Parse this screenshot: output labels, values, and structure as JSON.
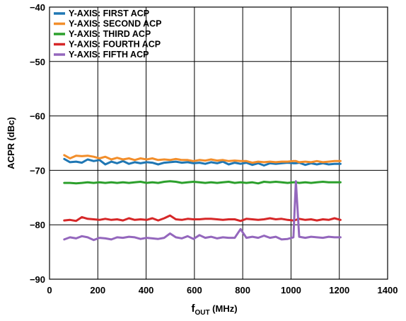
{
  "chart_data": {
    "type": "line",
    "xlabel": {
      "main": "f",
      "sub": "OUT",
      "rest": " (MHz)"
    },
    "ylabel": "ACPR (dBc)",
    "xlim": [
      0,
      1400
    ],
    "ylim": [
      -90,
      -40
    ],
    "xticks": [
      0,
      200,
      400,
      600,
      800,
      1000,
      1200,
      1400
    ],
    "yticks": [
      -40,
      -50,
      -60,
      -70,
      -80,
      -90
    ],
    "grid": true,
    "legend_position": "top-left",
    "x": [
      61,
      85,
      110,
      134,
      158,
      183,
      207,
      231,
      256,
      280,
      304,
      329,
      353,
      377,
      402,
      426,
      450,
      475,
      499,
      523,
      548,
      572,
      596,
      621,
      645,
      669,
      694,
      718,
      742,
      767,
      791,
      815,
      840,
      864,
      888,
      913,
      937,
      961,
      986,
      1010,
      1020,
      1034,
      1059,
      1083,
      1107,
      1132,
      1156,
      1180,
      1205
    ],
    "series": [
      {
        "name": "Y-AXIS: FIRST ACP",
        "color": "#1f77b4",
        "values": [
          -67.9,
          -68.5,
          -68.4,
          -68.6,
          -68.0,
          -68.3,
          -68.1,
          -68.9,
          -68.4,
          -68.7,
          -68.3,
          -68.8,
          -68.5,
          -68.7,
          -68.5,
          -68.6,
          -68.9,
          -68.6,
          -68.5,
          -68.4,
          -68.6,
          -68.5,
          -68.7,
          -68.6,
          -68.8,
          -68.5,
          -68.7,
          -68.4,
          -68.9,
          -68.6,
          -68.8,
          -68.6,
          -69.0,
          -68.7,
          -69.1,
          -68.7,
          -68.8,
          -68.7,
          -68.6,
          -68.7,
          -68.7,
          -68.6,
          -69.0,
          -68.7,
          -68.9,
          -68.7,
          -68.9,
          -68.8,
          -68.8
        ]
      },
      {
        "name": "Y-AXIS: SECOND ACP",
        "color": "#f28e2b",
        "values": [
          -67.2,
          -67.8,
          -67.3,
          -67.4,
          -67.3,
          -67.5,
          -67.8,
          -67.5,
          -68.0,
          -67.7,
          -68.0,
          -67.8,
          -68.1,
          -67.8,
          -68.0,
          -67.8,
          -68.1,
          -68.0,
          -68.1,
          -67.9,
          -68.1,
          -68.1,
          -68.3,
          -68.1,
          -68.2,
          -68.0,
          -68.2,
          -68.1,
          -68.3,
          -68.2,
          -68.3,
          -68.3,
          -68.6,
          -68.4,
          -68.5,
          -68.4,
          -68.5,
          -68.4,
          -68.4,
          -68.3,
          -68.3,
          -68.5,
          -68.4,
          -68.5,
          -68.3,
          -68.5,
          -68.4,
          -68.3,
          -68.3
        ]
      },
      {
        "name": "Y-AXIS: THIRD ACP",
        "color": "#2ca02c",
        "values": [
          -72.3,
          -72.3,
          -72.4,
          -72.3,
          -72.2,
          -72.3,
          -72.2,
          -72.3,
          -72.2,
          -72.3,
          -72.2,
          -72.3,
          -72.2,
          -72.1,
          -72.3,
          -72.2,
          -72.3,
          -72.1,
          -72.0,
          -72.1,
          -72.3,
          -72.2,
          -72.1,
          -72.2,
          -72.3,
          -72.2,
          -72.3,
          -72.2,
          -72.1,
          -72.3,
          -72.2,
          -72.3,
          -72.2,
          -72.4,
          -72.1,
          -72.2,
          -72.1,
          -72.2,
          -72.3,
          -72.2,
          -72.2,
          -72.3,
          -72.2,
          -72.3,
          -72.2,
          -72.1,
          -72.2,
          -72.2,
          -72.2
        ]
      },
      {
        "name": "Y-AXIS: FOURTH ACP",
        "color": "#d62728",
        "values": [
          -79.2,
          -79.1,
          -79.3,
          -78.6,
          -78.9,
          -79.0,
          -79.1,
          -78.9,
          -79.1,
          -79.0,
          -79.2,
          -78.8,
          -79.1,
          -79.0,
          -79.1,
          -78.8,
          -79.2,
          -78.8,
          -78.3,
          -79.0,
          -79.1,
          -78.9,
          -79.0,
          -79.0,
          -78.9,
          -78.9,
          -79.0,
          -79.1,
          -79.0,
          -79.0,
          -79.3,
          -78.9,
          -79.0,
          -79.1,
          -79.0,
          -78.8,
          -79.0,
          -78.9,
          -79.1,
          -79.2,
          -79.1,
          -78.9,
          -79.1,
          -79.0,
          -79.2,
          -79.0,
          -79.1,
          -78.8,
          -79.1
        ]
      },
      {
        "name": "Y-AXIS: FIFTH ACP",
        "color": "#9467bd",
        "values": [
          -82.7,
          -82.3,
          -82.5,
          -82.1,
          -82.3,
          -82.8,
          -82.4,
          -82.5,
          -82.7,
          -82.3,
          -82.4,
          -82.2,
          -82.3,
          -82.6,
          -82.4,
          -82.5,
          -82.6,
          -82.4,
          -81.6,
          -82.3,
          -82.5,
          -82.1,
          -82.6,
          -81.9,
          -82.4,
          -82.2,
          -82.5,
          -82.3,
          -82.4,
          -82.4,
          -80.8,
          -82.4,
          -82.2,
          -82.4,
          -82.0,
          -82.4,
          -82.2,
          -82.7,
          -82.6,
          -82.3,
          -72.0,
          -82.2,
          -82.4,
          -82.2,
          -82.3,
          -82.4,
          -82.2,
          -82.3,
          -82.3
        ]
      }
    ]
  }
}
